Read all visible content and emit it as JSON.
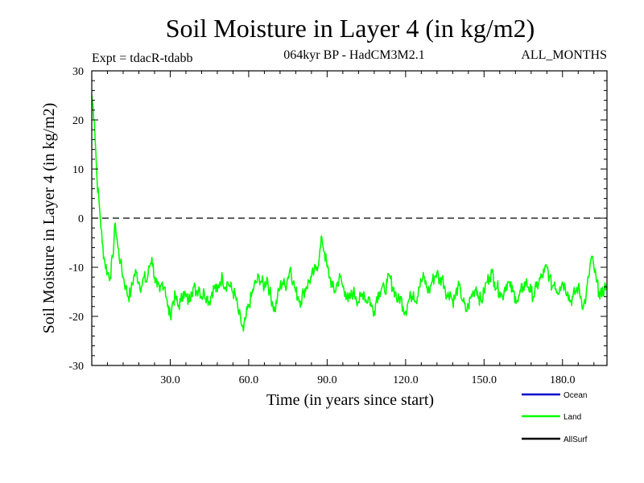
{
  "chart_data": {
    "type": "line",
    "title": "Soil Moisture in Layer 4 (in kg/m2)",
    "subtitle_left": "Expt = tdacR-tdabb",
    "subtitle_center": "064kyr BP - HadCM3M2.1",
    "subtitle_right": "ALL_MONTHS",
    "xlabel": "Time (in years since start)",
    "ylabel": "Soil Moisture in Layer 4 (in kg/m2)",
    "xlim": [
      0,
      197
    ],
    "ylim": [
      -30,
      30
    ],
    "x_ticks": [
      30,
      60,
      90,
      120,
      150,
      180
    ],
    "x_tick_labels": [
      "30.0",
      "60.0",
      "90.0",
      "120.0",
      "150.0",
      "180.0"
    ],
    "y_ticks": [
      -30,
      -20,
      -10,
      0,
      10,
      20,
      30
    ],
    "y_tick_labels": [
      "-30",
      "-20",
      "-10",
      "0",
      "10",
      "20",
      "30"
    ],
    "reference_line": 0,
    "legend": [
      {
        "name": "Ocean",
        "color": "#0000cc"
      },
      {
        "name": "Land",
        "color": "#00ff00"
      },
      {
        "name": "AllSurf",
        "color": "#000000"
      }
    ],
    "series": [
      {
        "name": "Land",
        "color": "#00ff00",
        "x_step": 1,
        "values": [
          25,
          20,
          8,
          2,
          -5,
          -9,
          -11,
          -12,
          -8,
          -1,
          -6,
          -9,
          -12,
          -14,
          -16,
          -15,
          -12,
          -11,
          -13,
          -14,
          -12,
          -13,
          -10,
          -8,
          -12,
          -14,
          -15,
          -13,
          -14,
          -18,
          -20,
          -17,
          -16,
          -18,
          -17,
          -15,
          -16,
          -17,
          -15,
          -14,
          -15,
          -14,
          -16,
          -15,
          -16,
          -17,
          -15,
          -14,
          -15,
          -13,
          -12,
          -14,
          -13,
          -14,
          -15,
          -16,
          -19,
          -21,
          -23,
          -20,
          -18,
          -16,
          -14,
          -13,
          -12,
          -13,
          -14,
          -12,
          -15,
          -17,
          -19,
          -16,
          -14,
          -13,
          -14,
          -12,
          -10,
          -13,
          -15,
          -16,
          -17,
          -15,
          -14,
          -13,
          -12,
          -11,
          -10,
          -8,
          -4,
          -7,
          -10,
          -12,
          -14,
          -15,
          -13,
          -12,
          -14,
          -15,
          -17,
          -16,
          -15,
          -16,
          -17,
          -16,
          -15,
          -17,
          -16,
          -18,
          -19,
          -16,
          -15,
          -14,
          -15,
          -13,
          -12,
          -14,
          -15,
          -17,
          -16,
          -18,
          -19,
          -17,
          -16,
          -15,
          -17,
          -14,
          -13,
          -12,
          -14,
          -15,
          -13,
          -12,
          -11,
          -13,
          -12,
          -14,
          -16,
          -15,
          -17,
          -16,
          -14,
          -15,
          -17,
          -19,
          -18,
          -16,
          -15,
          -14,
          -16,
          -17,
          -15,
          -13,
          -12,
          -11,
          -13,
          -14,
          -15,
          -16,
          -14,
          -13,
          -14,
          -15,
          -16,
          -17,
          -15,
          -14,
          -13,
          -14,
          -15,
          -16,
          -14,
          -13,
          -12,
          -11,
          -10,
          -12,
          -14,
          -13,
          -15,
          -14,
          -13,
          -14,
          -15,
          -17,
          -16,
          -15,
          -14,
          -16,
          -18,
          -16,
          -12,
          -8,
          -10,
          -13,
          -15,
          -16,
          -14
        ]
      }
    ]
  }
}
